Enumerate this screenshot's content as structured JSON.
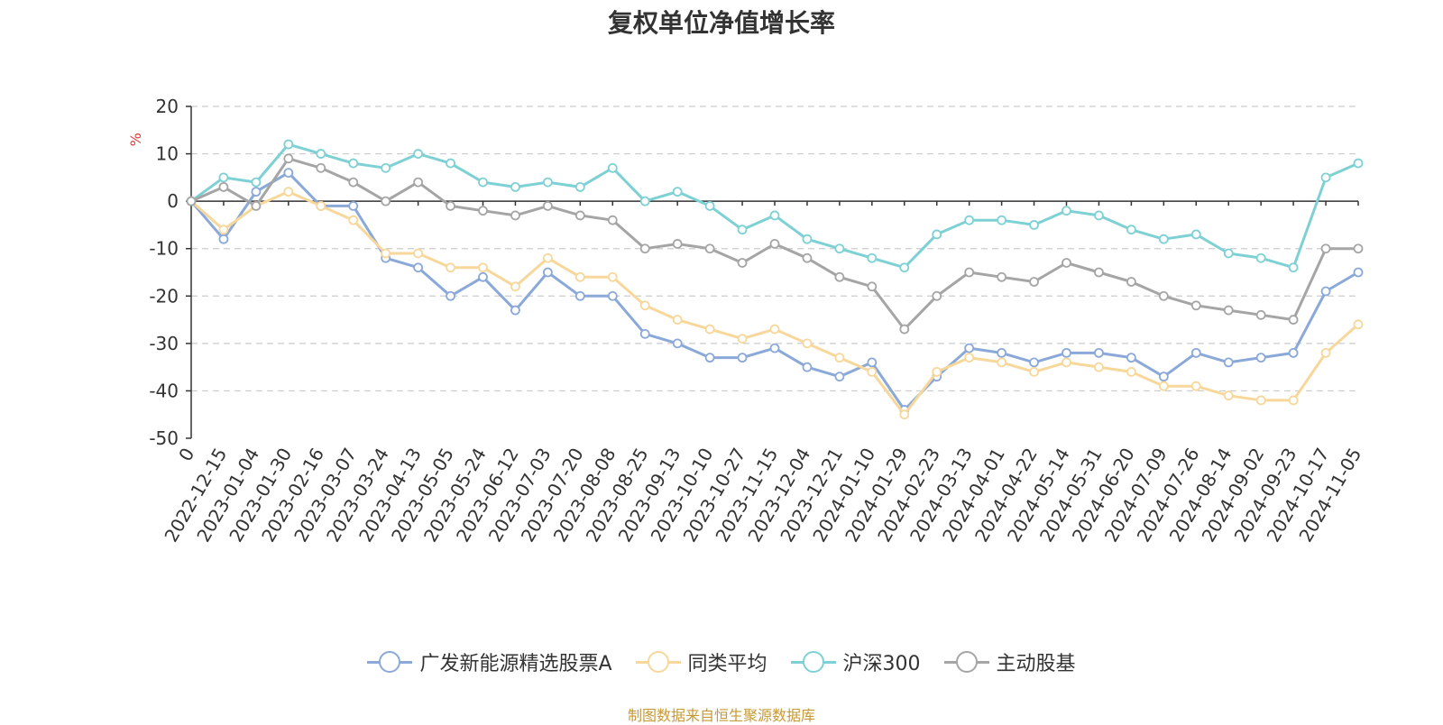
{
  "title": "复权单位净值增长率",
  "source": "制图数据来自恒生聚源数据库",
  "chart_data": {
    "type": "line",
    "title": "复权单位净值增长率",
    "ylabel": "%",
    "ylim": [
      -50,
      20
    ],
    "yticks": [
      20,
      10,
      0,
      -10,
      -20,
      -30,
      -40,
      -50
    ],
    "grid": true,
    "legend_position": "bottom",
    "x_tick_labels": [
      "0",
      "2022-12-15",
      "2023-01-04",
      "2023-01-30",
      "2023-02-16",
      "2023-03-07",
      "2023-03-24",
      "2023-04-13",
      "2023-05-05",
      "2023-05-24",
      "2023-06-12",
      "2023-07-03",
      "2023-07-20",
      "2023-08-08",
      "2023-08-25",
      "2023-09-13",
      "2023-10-10",
      "2023-10-27",
      "2023-11-15",
      "2023-12-04",
      "2023-12-21",
      "2024-01-10",
      "2024-01-29",
      "2024-02-23",
      "2024-03-13",
      "2024-04-01",
      "2024-04-22",
      "2024-05-14",
      "2024-05-31",
      "2024-06-20",
      "2024-07-09",
      "2024-07-26",
      "2024-08-14",
      "2024-09-02",
      "2024-09-23",
      "2024-10-17",
      "2024-11-05"
    ],
    "series": [
      {
        "name": "广发新能源精选股票A",
        "color": "#8aa8d8",
        "values": [
          0,
          -8,
          2,
          6,
          -1,
          -1,
          -12,
          -14,
          -20,
          -16,
          -23,
          -15,
          -20,
          -20,
          -28,
          -30,
          -33,
          -33,
          -31,
          -35,
          -37,
          -34,
          -44,
          -37,
          -31,
          -32,
          -34,
          -32,
          -32,
          -33,
          -37,
          -32,
          -34,
          -33,
          -32,
          -19,
          -15
        ]
      },
      {
        "name": "同类平均",
        "color": "#f7d79a",
        "values": [
          0,
          -6,
          -1,
          2,
          -1,
          -4,
          -11,
          -11,
          -14,
          -14,
          -18,
          -12,
          -16,
          -16,
          -22,
          -25,
          -27,
          -29,
          -27,
          -30,
          -33,
          -36,
          -45,
          -36,
          -33,
          -34,
          -36,
          -34,
          -35,
          -36,
          -39,
          -39,
          -41,
          -42,
          -42,
          -32,
          -26
        ]
      },
      {
        "name": "沪深300",
        "color": "#7dd1d4",
        "values": [
          0,
          5,
          4,
          12,
          10,
          8,
          7,
          10,
          8,
          4,
          3,
          4,
          3,
          7,
          0,
          2,
          -1,
          -6,
          -3,
          -8,
          -10,
          -12,
          -14,
          -7,
          -4,
          -4,
          -5,
          -2,
          -3,
          -6,
          -8,
          -7,
          -11,
          -12,
          -14,
          5,
          8
        ]
      },
      {
        "name": "主动股基",
        "color": "#a5a5a5",
        "values": [
          0,
          3,
          -1,
          9,
          7,
          4,
          0,
          4,
          -1,
          -2,
          -3,
          -1,
          -3,
          -4,
          -10,
          -9,
          -10,
          -13,
          -9,
          -12,
          -16,
          -18,
          -27,
          -20,
          -15,
          -16,
          -17,
          -13,
          -15,
          -17,
          -20,
          -22,
          -23,
          -24,
          -25,
          -10,
          -10
        ]
      }
    ]
  }
}
